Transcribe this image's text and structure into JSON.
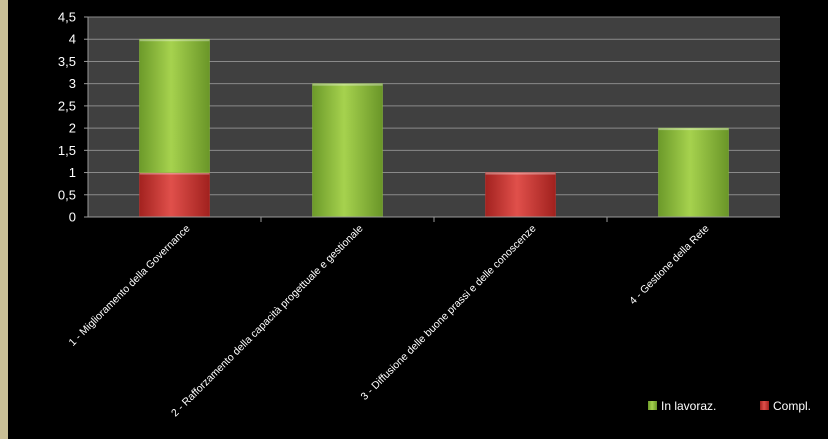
{
  "chart_data": {
    "type": "bar",
    "stacked": true,
    "categories": [
      "1 - Miglioramento della Governance",
      "2 - Rafforzamento della capacità progettuale e gestionale",
      "3 - Diffusione delle buone prassi e delle conoscenze",
      "4 - Gestione della Rete"
    ],
    "series": [
      {
        "name": "Compl.",
        "values": [
          1,
          0,
          1,
          0
        ],
        "color": "#c8322f"
      },
      {
        "name": "In lavoraz.",
        "values": [
          3,
          3,
          0,
          2
        ],
        "color": "#8cbf3c"
      }
    ],
    "ylim": [
      0,
      4.5
    ],
    "yticks": [
      "0",
      "0,5",
      "1",
      "1,5",
      "2",
      "2,5",
      "3",
      "3,5",
      "4",
      "4,5"
    ],
    "grid": true,
    "legend": "bottom-right",
    "legend_order": [
      "In lavoraz.",
      "Compl."
    ],
    "background": "#000000",
    "plot_background": "#404040"
  }
}
